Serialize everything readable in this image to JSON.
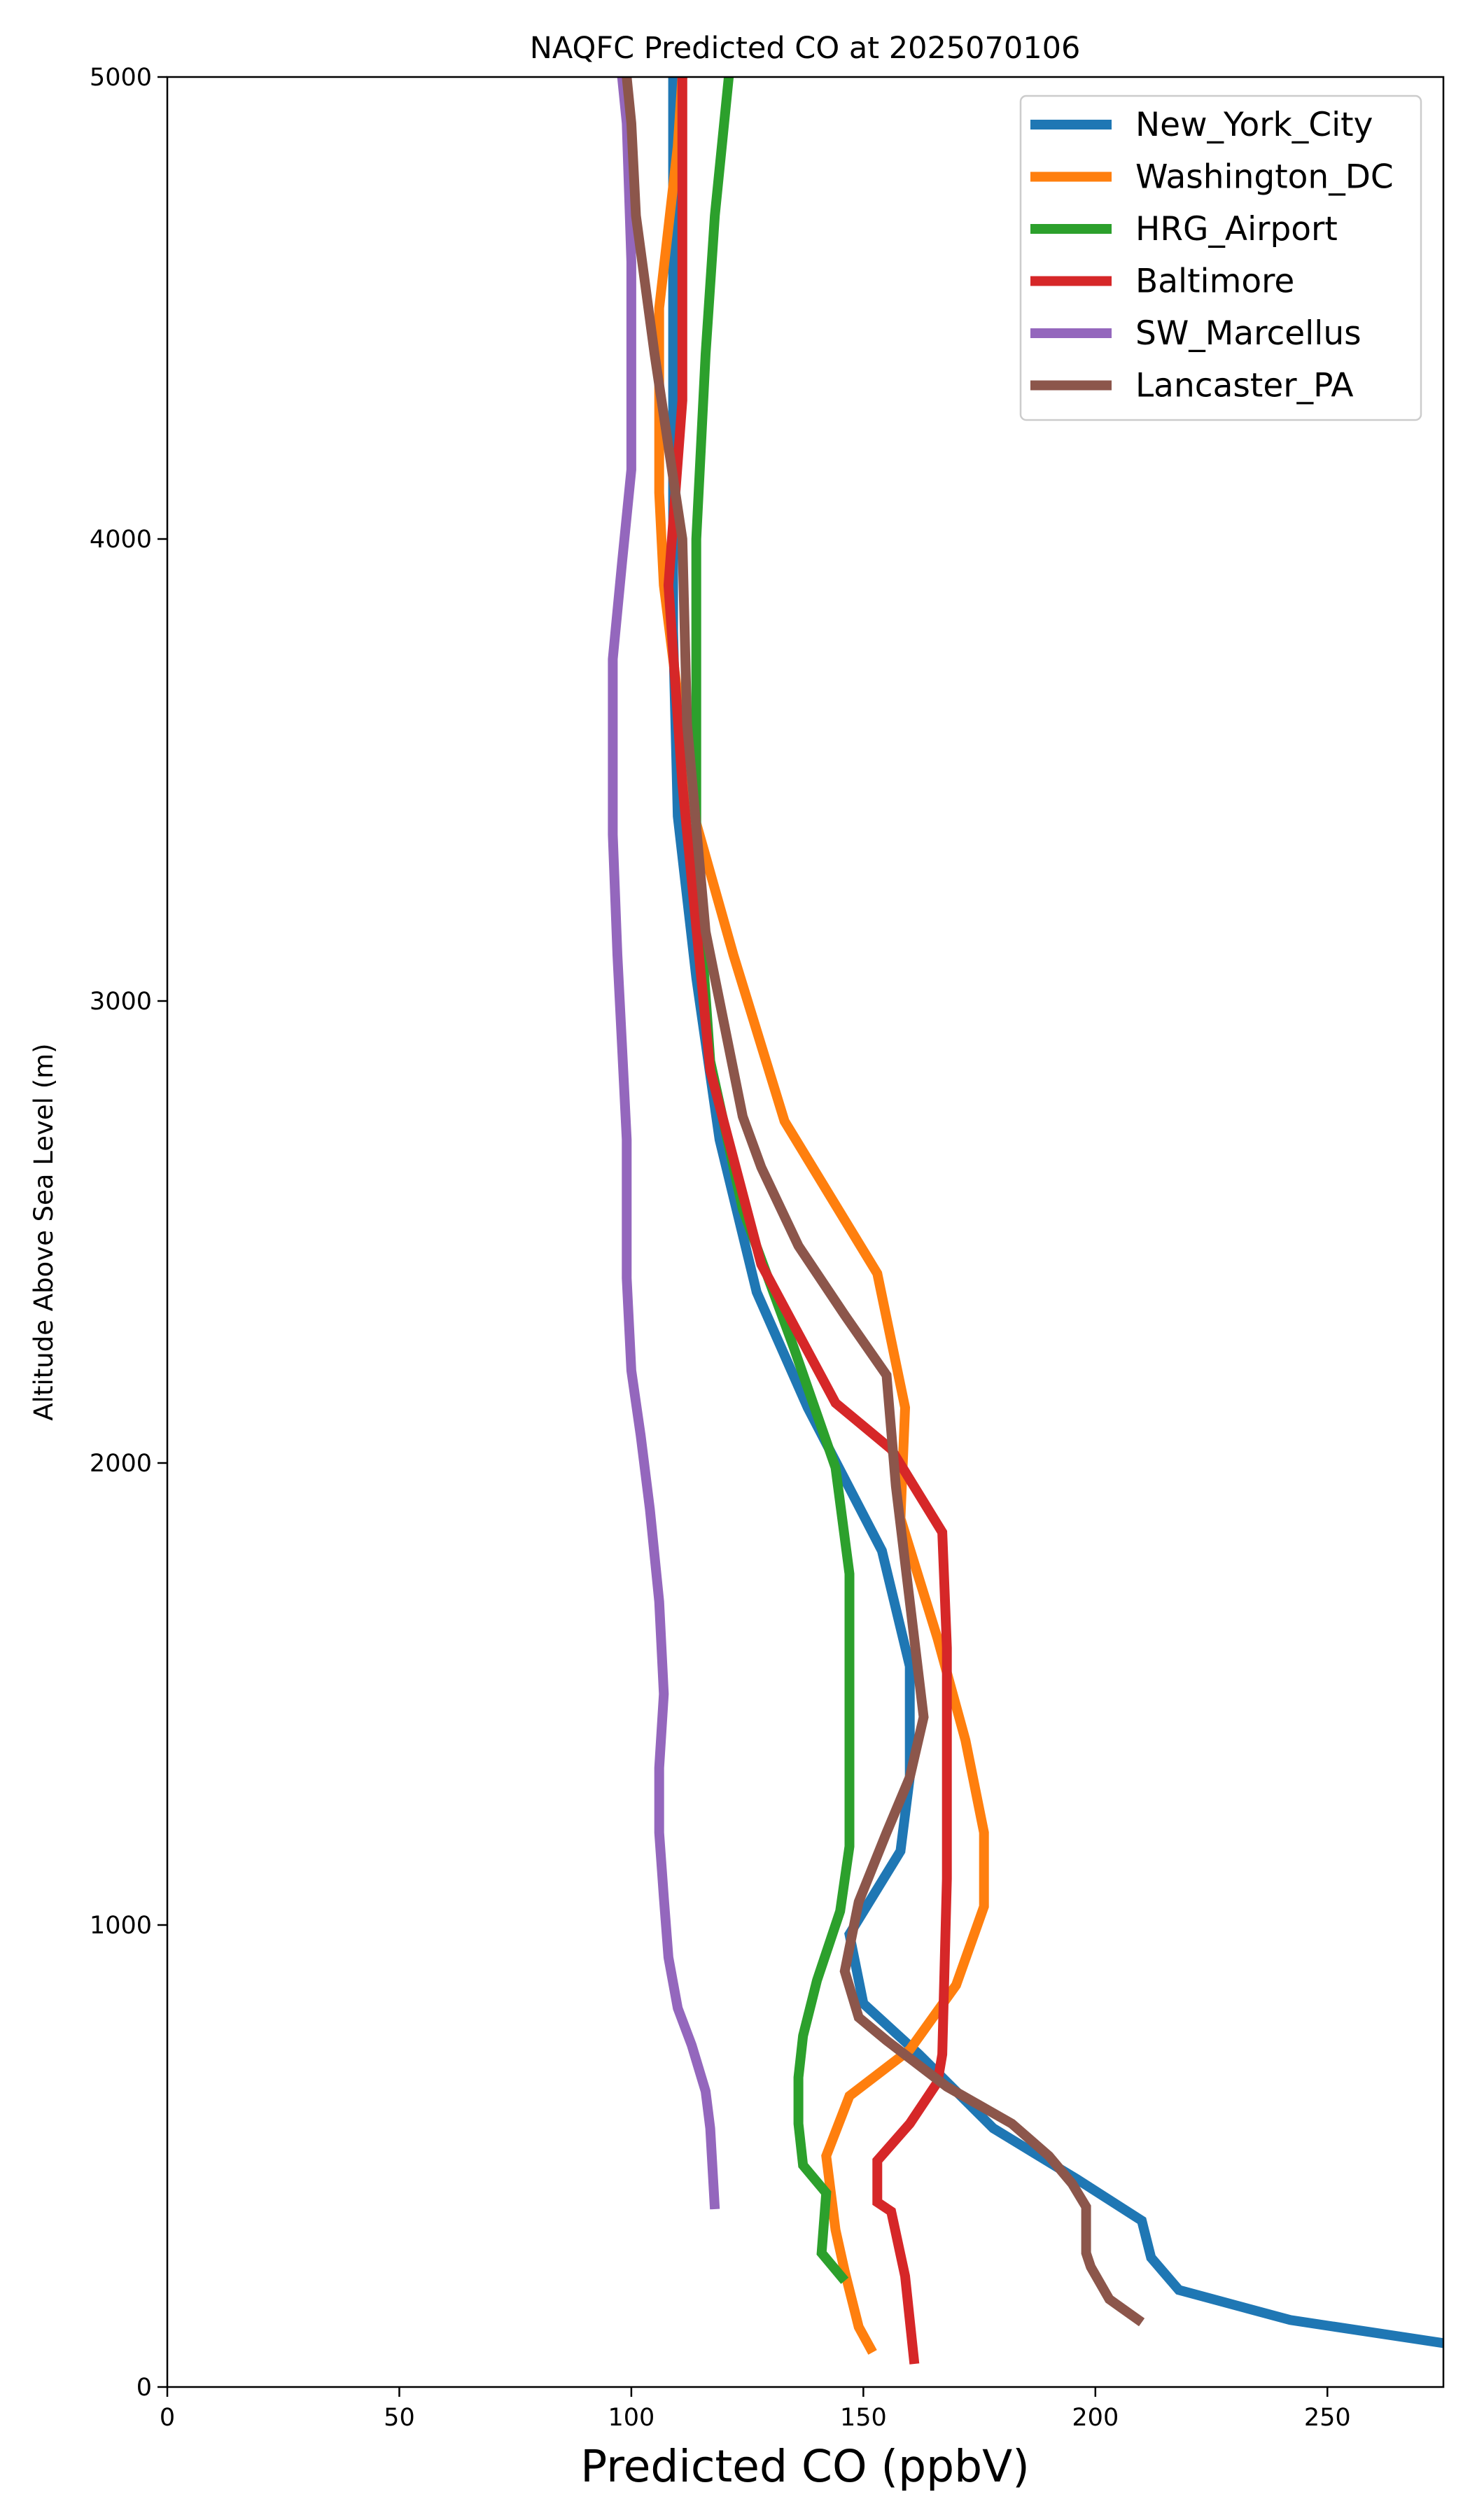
{
  "chart_data": {
    "type": "line",
    "title": "NAQFC Predicted CO at 2025070106",
    "xlabel": "Predicted CO (ppbV)",
    "ylabel": "Altitude Above Sea Level (m)",
    "xlim": [
      0,
      275
    ],
    "ylim": [
      0,
      5000
    ],
    "xticks": [
      0,
      50,
      100,
      150,
      200,
      250
    ],
    "yticks": [
      0,
      1000,
      2000,
      3000,
      4000,
      5000
    ],
    "grid": false,
    "legend_position": "top-right",
    "series": [
      {
        "name": "New_York_City",
        "color": "#1f77b4",
        "points": [
          [
            275,
            95
          ],
          [
            242,
            145
          ],
          [
            218,
            210
          ],
          [
            212,
            280
          ],
          [
            210,
            360
          ],
          [
            196,
            450
          ],
          [
            178,
            560
          ],
          [
            162,
            720
          ],
          [
            150,
            830
          ],
          [
            147,
            980
          ],
          [
            158,
            1160
          ],
          [
            160,
            1320
          ],
          [
            160,
            1560
          ],
          [
            154,
            1810
          ],
          [
            138,
            2120
          ],
          [
            127,
            2370
          ],
          [
            119,
            2700
          ],
          [
            114,
            3050
          ],
          [
            110,
            3400
          ],
          [
            109,
            3800
          ],
          [
            109,
            4200
          ],
          [
            109,
            4600
          ],
          [
            109,
            5000
          ]
        ]
      },
      {
        "name": "Washington_DC",
        "color": "#ff7f0e",
        "points": [
          [
            152,
            75
          ],
          [
            149,
            130
          ],
          [
            146,
            250
          ],
          [
            144,
            340
          ],
          [
            142,
            500
          ],
          [
            147,
            630
          ],
          [
            160,
            730
          ],
          [
            170,
            870
          ],
          [
            176,
            1040
          ],
          [
            176,
            1200
          ],
          [
            172,
            1400
          ],
          [
            166,
            1620
          ],
          [
            158,
            1880
          ],
          [
            159,
            2120
          ],
          [
            153,
            2410
          ],
          [
            133,
            2740
          ],
          [
            122,
            3100
          ],
          [
            113,
            3420
          ],
          [
            107,
            3900
          ],
          [
            106,
            4100
          ],
          [
            106,
            4500
          ],
          [
            110,
            4850
          ],
          [
            111,
            5000
          ]
        ]
      },
      {
        "name": "HRG_Airport",
        "color": "#2ca02c",
        "points": [
          [
            146,
            230
          ],
          [
            141,
            290
          ],
          [
            142,
            420
          ],
          [
            137,
            480
          ],
          [
            136,
            570
          ],
          [
            136,
            670
          ],
          [
            137,
            760
          ],
          [
            140,
            880
          ],
          [
            145,
            1030
          ],
          [
            147,
            1170
          ],
          [
            147,
            1500
          ],
          [
            147,
            1760
          ],
          [
            144,
            1990
          ],
          [
            135,
            2250
          ],
          [
            124,
            2550
          ],
          [
            117,
            2870
          ],
          [
            114,
            3300
          ],
          [
            114,
            3600
          ],
          [
            114,
            4000
          ],
          [
            116,
            4400
          ],
          [
            118,
            4700
          ],
          [
            121,
            5000
          ]
        ]
      },
      {
        "name": "Baltimore",
        "color": "#d62728",
        "points": [
          [
            161,
            50
          ],
          [
            159,
            240
          ],
          [
            156,
            380
          ],
          [
            153,
            400
          ],
          [
            153,
            490
          ],
          [
            160,
            570
          ],
          [
            166,
            660
          ],
          [
            167,
            720
          ],
          [
            168,
            1100
          ],
          [
            168,
            1600
          ],
          [
            167,
            1850
          ],
          [
            156,
            2030
          ],
          [
            144,
            2130
          ],
          [
            128,
            2430
          ],
          [
            117,
            2850
          ],
          [
            111,
            3470
          ],
          [
            108,
            3900
          ],
          [
            111,
            4300
          ],
          [
            111,
            4800
          ],
          [
            111,
            5000
          ]
        ]
      },
      {
        "name": "SW_Marcellus",
        "color": "#9467bd",
        "points": [
          [
            118,
            385
          ],
          [
            117,
            560
          ],
          [
            116,
            640
          ],
          [
            113,
            740
          ],
          [
            110,
            820
          ],
          [
            108,
            930
          ],
          [
            107,
            1060
          ],
          [
            106,
            1200
          ],
          [
            106,
            1340
          ],
          [
            107,
            1500
          ],
          [
            106,
            1700
          ],
          [
            104,
            1900
          ],
          [
            102,
            2060
          ],
          [
            100,
            2200
          ],
          [
            99,
            2400
          ],
          [
            99,
            2700
          ],
          [
            98,
            2900
          ],
          [
            97,
            3100
          ],
          [
            96,
            3360
          ],
          [
            96,
            3740
          ],
          [
            98,
            3950
          ],
          [
            100,
            4150
          ],
          [
            100,
            4600
          ],
          [
            99,
            4900
          ],
          [
            98,
            5000
          ]
        ]
      },
      {
        "name": "Lancaster_PA",
        "color": "#8c564b",
        "points": [
          [
            210,
            140
          ],
          [
            203,
            190
          ],
          [
            199,
            260
          ],
          [
            198,
            290
          ],
          [
            198,
            390
          ],
          [
            195,
            440
          ],
          [
            190,
            500
          ],
          [
            182,
            570
          ],
          [
            168,
            650
          ],
          [
            155,
            750
          ],
          [
            149,
            800
          ],
          [
            146,
            900
          ],
          [
            149,
            1050
          ],
          [
            155,
            1200
          ],
          [
            160,
            1320
          ],
          [
            163,
            1450
          ],
          [
            160,
            1700
          ],
          [
            157,
            1950
          ],
          [
            155,
            2190
          ],
          [
            146,
            2320
          ],
          [
            136,
            2470
          ],
          [
            128,
            2640
          ],
          [
            124,
            2750
          ],
          [
            120,
            2950
          ],
          [
            116,
            3150
          ],
          [
            112,
            3600
          ],
          [
            111,
            4000
          ],
          [
            105,
            4400
          ],
          [
            101,
            4700
          ],
          [
            100,
            4900
          ],
          [
            99,
            5000
          ]
        ]
      }
    ]
  }
}
